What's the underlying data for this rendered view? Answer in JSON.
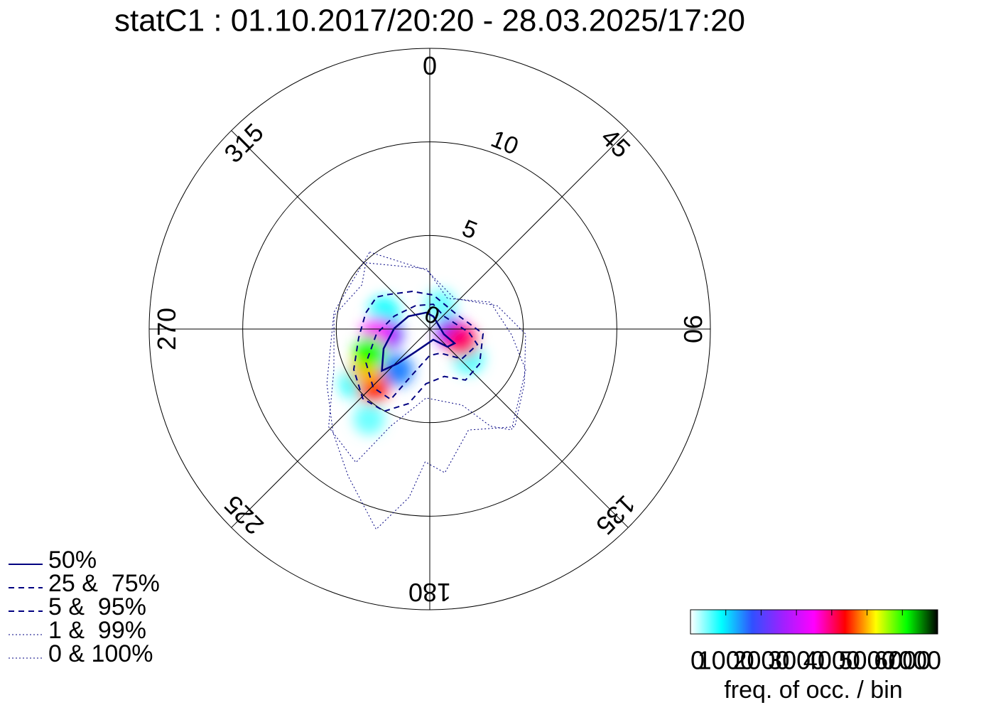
{
  "chart_data": {
    "type": "polar-contour",
    "title": "statC1 : 01.10.2017/20:20 - 28.03.2025/17:20",
    "rlim": [
      0,
      15
    ],
    "rticks": [
      0,
      5,
      10
    ],
    "thetaticks": [
      0,
      45,
      90,
      135,
      180,
      225,
      270,
      315
    ],
    "series": [
      {
        "name": "50%",
        "color": "#000080",
        "style": "solid",
        "theta": [
          348,
          301,
          271,
          247,
          229,
          223,
          212,
          162,
          135,
          120,
          110,
          16
        ],
        "r": [
          0.9,
          1.33,
          1.9,
          2.68,
          3.39,
          2.53,
          1.43,
          0.6,
          1.34,
          1.53,
          0.8,
          0.7
        ]
      },
      {
        "name": "25 &  75%",
        "color": "#000080",
        "style": "dashed",
        "theta": [
          329,
          290,
          265,
          242,
          224,
          209,
          202,
          180,
          156,
          133,
          108,
          95,
          48,
          8
        ],
        "r": [
          1.46,
          2.02,
          2.86,
          3.86,
          4.35,
          4.3,
          2.74,
          1.41,
          1.41,
          2.34,
          2.68,
          2.1,
          1.02,
          1.34
        ]
      },
      {
        "name": "5 &  95%",
        "color": "#000080",
        "style": "dashed",
        "theta": [
          309,
          335,
          6,
          57,
          95,
          125,
          145,
          163,
          184,
          196,
          209,
          224,
          242,
          263,
          284,
          301
        ],
        "r": [
          2.92,
          2.22,
          1.83,
          1.59,
          2.86,
          3.25,
          3.33,
          2.65,
          2.93,
          4.15,
          5.02,
          5.16,
          4.6,
          3.83,
          3.53,
          3.32
        ]
      },
      {
        "name": "1 &  99%",
        "color": "#000080",
        "style": "dotted",
        "theta": [
          316,
          357,
          30,
          66,
          94,
          113,
          141,
          148,
          157,
          183,
          202,
          209,
          226,
          247,
          278,
          303
        ],
        "r": [
          4.92,
          3.23,
          1.89,
          3.54,
          4.38,
          5.57,
          6.94,
          6.12,
          4.41,
          3.69,
          5.6,
          8.15,
          7.52,
          5.57,
          5.17,
          4.33
        ]
      },
      {
        "name": "0 & 100%",
        "color": "#000080",
        "style": "dotted",
        "theta": [
          322,
          357,
          39,
          71,
          93,
          120,
          139,
          159,
          174,
          182,
          187,
          195,
          209,
          223,
          242,
          280
        ],
        "r": [
          5.22,
          3.15,
          2.1,
          3.82,
          5.13,
          5.84,
          6.92,
          5.78,
          7.72,
          7.1,
          9.06,
          11.08,
          8.99,
          7.58,
          6.23,
          5.2
        ]
      }
    ],
    "density": {
      "theta": [
        290,
        214,
        24,
        127,
        234,
        218,
        263,
        99,
        265,
        224,
        238,
        249,
        111
      ],
      "r": [
        2.6,
        5.8,
        1.4,
        2.6,
        4.9,
        2.8,
        2.3,
        1.16,
        2.86,
        4.35,
        4.05,
        3.45,
        1.83
      ],
      "values": [
        800,
        500,
        500,
        600,
        800,
        1500,
        2000,
        2500,
        3500,
        4500,
        5000,
        6000,
        4000
      ]
    },
    "colormap": [
      "#ffffff",
      "#00ffff",
      "#3050ff",
      "#a020ff",
      "#ff00ff",
      "#ff0000",
      "#ffff00",
      "#00ff00",
      "#000000"
    ],
    "colorbar_label": "freq. of occ. / bin",
    "clim": [
      0,
      7000
    ],
    "cticks": [
      0,
      1000,
      2000,
      3000,
      4000,
      5000,
      6000,
      7000
    ]
  }
}
